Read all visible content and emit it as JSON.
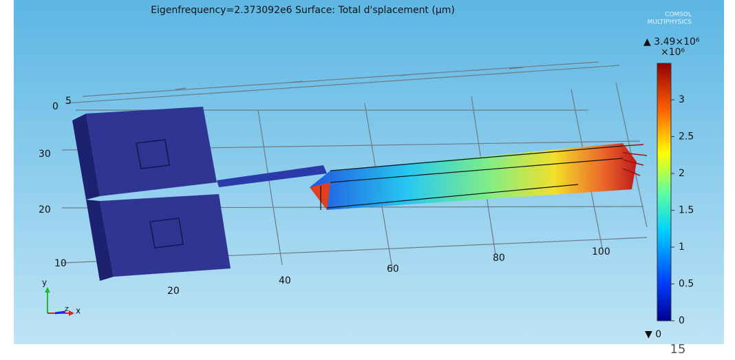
{
  "header": {
    "title": "Eigenfrequency=2.373092e6   Surface: Total d'splacement (μm)"
  },
  "logo": {
    "line1": "COMSOL",
    "line2": "MULTIPHYSICS"
  },
  "colorbar": {
    "max_label": "▲ 3.49×10⁶",
    "multiplier": "×10⁶",
    "ticks": [
      "3",
      "2.5",
      "2",
      "1.5",
      "1",
      "0.5",
      "0"
    ],
    "min_label": "▼ 0"
  },
  "axes": {
    "z_labels": [
      "0",
      "5"
    ],
    "y_labels": [
      "30",
      "20",
      "10"
    ],
    "x_labels": [
      "20",
      "40",
      "60",
      "80",
      "100"
    ]
  },
  "triad": {
    "y": "y",
    "z": "z",
    "x": "x"
  },
  "page_number": "15"
}
